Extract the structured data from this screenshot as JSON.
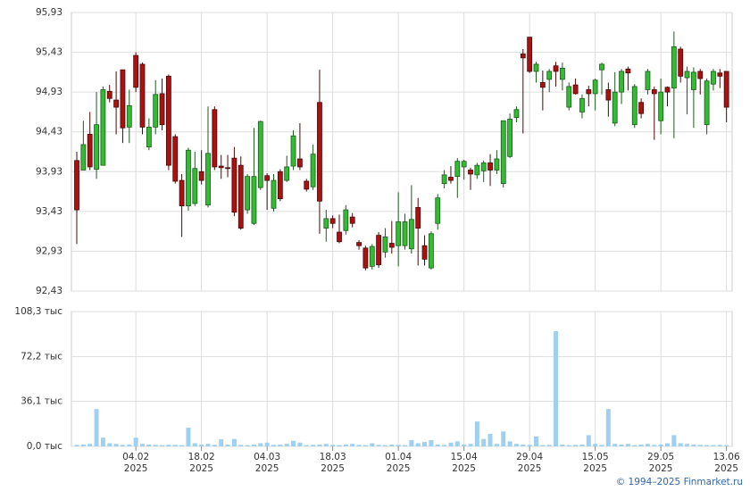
{
  "chart_data": {
    "type": "candlestick",
    "categories": [
      null,
      null,
      null,
      null,
      null,
      null,
      null,
      null,
      null,
      "04.02 2025",
      null,
      null,
      null,
      null,
      null,
      null,
      null,
      null,
      null,
      "18.02 2025",
      null,
      null,
      null,
      null,
      null,
      null,
      null,
      null,
      null,
      "04.03 2025",
      null,
      null,
      null,
      null,
      null,
      null,
      null,
      null,
      null,
      "18.03 2025",
      null,
      null,
      null,
      null,
      null,
      null,
      null,
      null,
      null,
      "01.04 2025",
      null,
      null,
      null,
      null,
      null,
      null,
      null,
      null,
      null,
      "15.04 2025",
      null,
      null,
      null,
      null,
      null,
      null,
      null,
      null,
      null,
      "29.04 2025",
      null,
      null,
      null,
      null,
      null,
      null,
      null,
      null,
      null,
      "15.05 2025",
      null,
      null,
      null,
      null,
      null,
      null,
      null,
      null,
      null,
      "29.05 2025",
      null,
      null,
      null,
      null,
      null,
      null,
      null,
      null,
      null,
      "13.06 2025"
    ],
    "open": [
      94.07,
      93.95,
      94.4,
      93.96,
      94.01,
      94.94,
      94.83,
      95.21,
      94.49,
      95.39,
      95.28,
      94.24,
      94.49,
      94.91,
      95.13,
      94.37,
      93.82,
      93.5,
      93.53,
      93.93,
      93.51,
      94.71,
      94.0,
      93.98,
      94.1,
      94.01,
      93.45,
      93.28,
      93.73,
      93.88,
      93.47,
      93.93,
      93.82,
      94.0,
      94.09,
      93.81,
      93.74,
      94.8,
      93.22,
      93.34,
      93.17,
      93.19,
      93.36,
      93.04,
      92.97,
      92.74,
      93.13,
      92.92,
      93.03,
      93.0,
      93.0,
      92.96,
      93.48,
      93.0,
      92.72,
      93.28,
      93.78,
      93.86,
      93.87,
      93.99,
      93.95,
      93.89,
      93.94,
      94.04,
      93.95,
      93.78,
      94.12,
      94.61,
      95.41,
      95.62,
      95.19,
      95.05,
      95.09,
      95.26,
      95.09,
      94.74,
      95.02,
      94.68,
      94.96,
      94.91,
      95.21,
      94.96,
      94.54,
      94.93,
      95.22,
      94.52,
      94.8,
      94.96,
      94.96,
      94.57,
      94.99,
      94.98,
      95.47,
      95.11,
      94.96,
      95.19,
      94.52,
      95.03,
      95.17,
      95.19
    ],
    "high": [
      94.18,
      94.57,
      94.68,
      94.93,
      95.0,
      95.02,
      95.19,
      95.21,
      94.96,
      95.43,
      95.3,
      94.6,
      95.08,
      95.1,
      95.15,
      94.4,
      93.9,
      94.23,
      94.18,
      94.2,
      94.75,
      94.75,
      94.14,
      94.14,
      94.24,
      94.12,
      93.9,
      94.48,
      94.57,
      93.91,
      93.9,
      93.96,
      94.13,
      94.45,
      94.54,
      93.84,
      94.27,
      95.21,
      93.45,
      93.38,
      93.39,
      93.51,
      93.41,
      93.07,
      93.0,
      93.02,
      93.17,
      93.22,
      93.31,
      93.67,
      93.4,
      93.76,
      93.6,
      93.13,
      93.18,
      93.65,
      93.95,
      94.0,
      94.1,
      94.08,
      93.98,
      94.04,
      94.07,
      94.15,
      94.2,
      94.57,
      94.66,
      94.75,
      95.47,
      95.62,
      95.31,
      95.2,
      95.22,
      95.31,
      95.3,
      95.05,
      95.1,
      94.9,
      95.01,
      95.1,
      95.3,
      95.05,
      95.18,
      95.22,
      95.25,
      95.03,
      94.85,
      95.22,
      95.0,
      95.1,
      95.0,
      95.69,
      95.5,
      95.25,
      95.24,
      95.22,
      95.1,
      95.22,
      95.22,
      95.19
    ],
    "low": [
      93.02,
      93.95,
      93.95,
      93.84,
      94.01,
      94.8,
      94.4,
      94.29,
      94.29,
      94.93,
      94.4,
      94.2,
      94.4,
      94.45,
      93.95,
      93.78,
      93.11,
      93.44,
      93.5,
      93.77,
      93.48,
      93.95,
      93.84,
      93.86,
      93.37,
      93.2,
      93.4,
      93.26,
      93.7,
      93.45,
      93.43,
      93.56,
      93.8,
      93.95,
      93.95,
      93.68,
      93.7,
      93.15,
      93.05,
      93.22,
      93.03,
      93.14,
      93.23,
      92.95,
      92.69,
      92.7,
      92.72,
      92.85,
      92.9,
      92.74,
      92.95,
      92.9,
      92.75,
      92.75,
      92.7,
      93.2,
      93.72,
      93.78,
      93.6,
      93.83,
      93.7,
      93.84,
      93.8,
      93.75,
      93.9,
      93.73,
      94.1,
      94.55,
      94.41,
      95.17,
      95.05,
      94.7,
      94.93,
      95.0,
      94.95,
      94.7,
      94.9,
      94.6,
      94.75,
      94.7,
      94.9,
      94.62,
      94.5,
      94.78,
      94.95,
      94.48,
      94.6,
      94.9,
      94.33,
      94.4,
      94.75,
      94.35,
      95.05,
      94.65,
      94.48,
      94.9,
      94.4,
      94.95,
      94.98,
      94.55
    ],
    "close": [
      93.45,
      94.27,
      93.99,
      94.52,
      94.96,
      94.85,
      94.74,
      94.48,
      94.76,
      94.99,
      94.49,
      94.49,
      94.9,
      94.52,
      94.01,
      93.81,
      93.5,
      94.2,
      93.97,
      93.82,
      94.16,
      93.99,
      93.98,
      93.98,
      93.42,
      93.22,
      93.87,
      93.87,
      94.56,
      93.82,
      93.82,
      93.59,
      93.99,
      94.38,
      93.99,
      93.71,
      94.15,
      93.56,
      93.34,
      93.28,
      93.05,
      93.45,
      93.28,
      93.0,
      92.72,
      92.99,
      92.76,
      93.11,
      92.98,
      93.3,
      93.3,
      93.33,
      93.22,
      92.83,
      93.15,
      93.6,
      93.89,
      93.82,
      94.06,
      94.06,
      93.9,
      94.01,
      94.04,
      93.95,
      94.09,
      94.57,
      94.59,
      94.71,
      95.36,
      95.19,
      95.28,
      94.99,
      95.19,
      95.19,
      95.23,
      95.0,
      94.91,
      94.85,
      94.91,
      95.08,
      95.28,
      94.83,
      94.93,
      95.19,
      95.17,
      95.0,
      94.66,
      95.19,
      94.91,
      94.93,
      94.93,
      95.5,
      95.13,
      95.19,
      95.18,
      95.1,
      95.07,
      95.19,
      95.13,
      94.74
    ],
    "up_color": "#33bb33",
    "down_color": "#aa1111",
    "ylim": [
      92.43,
      95.93
    ],
    "yticks": [
      {
        "value": 92.43,
        "label": "92,43"
      },
      {
        "value": 92.93,
        "label": "92,93"
      },
      {
        "value": 93.43,
        "label": "93,43"
      },
      {
        "value": 93.93,
        "label": "93,93"
      },
      {
        "value": 94.43,
        "label": "94,43"
      },
      {
        "value": 94.93,
        "label": "94,93"
      },
      {
        "value": 95.43,
        "label": "95,43"
      },
      {
        "value": 95.93,
        "label": "95,93"
      }
    ],
    "grid": true,
    "volume": {
      "type": "bar",
      "color": "#9fd0f0",
      "values": [
        1.2,
        1.5,
        2,
        30,
        7,
        2.5,
        2,
        1.2,
        1.5,
        7,
        2,
        1.5,
        1.2,
        1,
        1.3,
        1.2,
        1,
        15,
        2.5,
        1.5,
        2,
        1.2,
        5.7,
        1.5,
        6,
        1.2,
        1,
        1.5,
        2.5,
        3,
        1.2,
        1.5,
        2,
        4.5,
        3,
        1,
        1.2,
        1.5,
        2,
        1.2,
        1,
        1.5,
        2,
        1.2,
        1,
        2.5,
        1.2,
        1,
        1.5,
        1.2,
        1,
        5,
        2.5,
        3.5,
        5,
        1.5,
        1.2,
        3,
        4,
        1.5,
        2,
        20,
        6,
        10,
        2,
        12,
        4,
        2,
        1.5,
        1.2,
        8,
        1,
        1.2,
        92.5,
        1.5,
        1,
        1.2,
        1.5,
        9,
        2,
        1.2,
        30,
        2,
        1.5,
        2,
        1,
        1.5,
        2,
        1.2,
        1.5,
        2.5,
        9,
        2.5,
        2,
        1.5,
        1.2,
        1,
        1,
        1.2,
        1
      ],
      "ylim": [
        0,
        108.3
      ],
      "yticks": [
        {
          "value": 0,
          "label": "0,0 тыс"
        },
        {
          "value": 36.1,
          "label": "36,1 тыс"
        },
        {
          "value": 72.2,
          "label": "72,2 тыс"
        },
        {
          "value": 108.3,
          "label": "108,3 тыс"
        }
      ]
    },
    "source": "© 1994–2025 Finmarket.ru"
  }
}
